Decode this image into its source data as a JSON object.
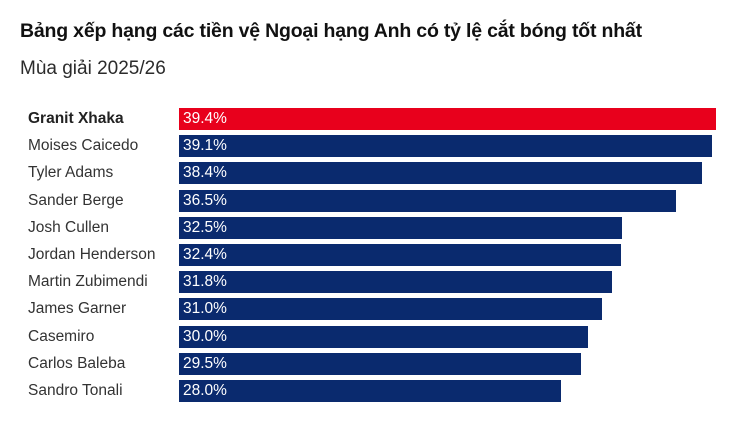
{
  "header": {
    "title": "Bảng xếp hạng các tiền vệ Ngoại hạng Anh có tỷ lệ cắt bóng tốt nhất",
    "subtitle": "Mùa giải 2025/26"
  },
  "colors": {
    "highlight": "#e8001c",
    "default": "#0a2a6e"
  },
  "chart_data": {
    "type": "bar",
    "orientation": "horizontal",
    "title": "Bảng xếp hạng các tiền vệ Ngoại hạng Anh có tỷ lệ cắt bóng tốt nhất",
    "subtitle": "Mùa giải 2025/26",
    "xlabel": "",
    "ylabel": "",
    "unit": "%",
    "grid": false,
    "legend": null,
    "categories": [
      "Granit Xhaka",
      "Moises Caicedo",
      "Tyler Adams",
      "Sander Berge",
      "Josh Cullen",
      "Jordan Henderson",
      "Martin Zubimendi",
      "James Garner",
      "Casemiro",
      "Carlos Baleba",
      "Sandro Tonali"
    ],
    "values": [
      39.4,
      39.1,
      38.4,
      36.5,
      32.5,
      32.4,
      31.8,
      31.0,
      30.0,
      29.5,
      28.0
    ],
    "labels": [
      "39.4%",
      "39.1%",
      "38.4%",
      "36.5%",
      "32.5%",
      "32.4%",
      "31.8%",
      "31.0%",
      "30.0%",
      "29.5%",
      "28.0%"
    ],
    "highlight_index": 0
  }
}
